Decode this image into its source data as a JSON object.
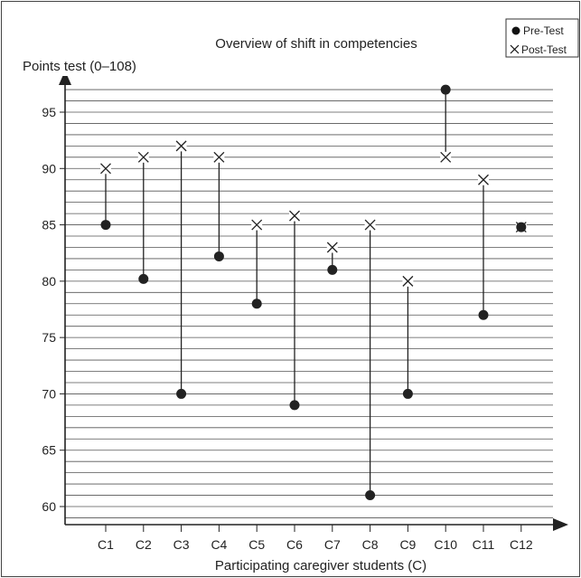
{
  "chart_data": {
    "type": "scatter",
    "title": "Overview of shift in competencies",
    "ylabel": "Points test (0–108)",
    "xlabel": "Participating caregiver students (C)",
    "categories": [
      "C1",
      "C2",
      "C3",
      "C4",
      "C5",
      "C6",
      "C7",
      "C8",
      "C9",
      "C10",
      "C11",
      "C12"
    ],
    "series": [
      {
        "name": "Pre-Test",
        "marker": "dot",
        "values": [
          85,
          80.2,
          70,
          82.2,
          78,
          69,
          81,
          61,
          70,
          97,
          77,
          84.8
        ]
      },
      {
        "name": "Post-Test",
        "marker": "cross",
        "values": [
          90,
          91,
          92,
          91,
          85,
          85.8,
          83,
          85,
          80,
          91,
          89,
          84.8
        ]
      }
    ],
    "ylim": [
      58,
      101
    ],
    "yticks": [
      60,
      65,
      70,
      75,
      80,
      85,
      90,
      95
    ],
    "minor_grid_step": 1,
    "grid": true,
    "legend_position": "top-right",
    "colors": {
      "ink": "#222222",
      "grid": "#555555"
    }
  }
}
